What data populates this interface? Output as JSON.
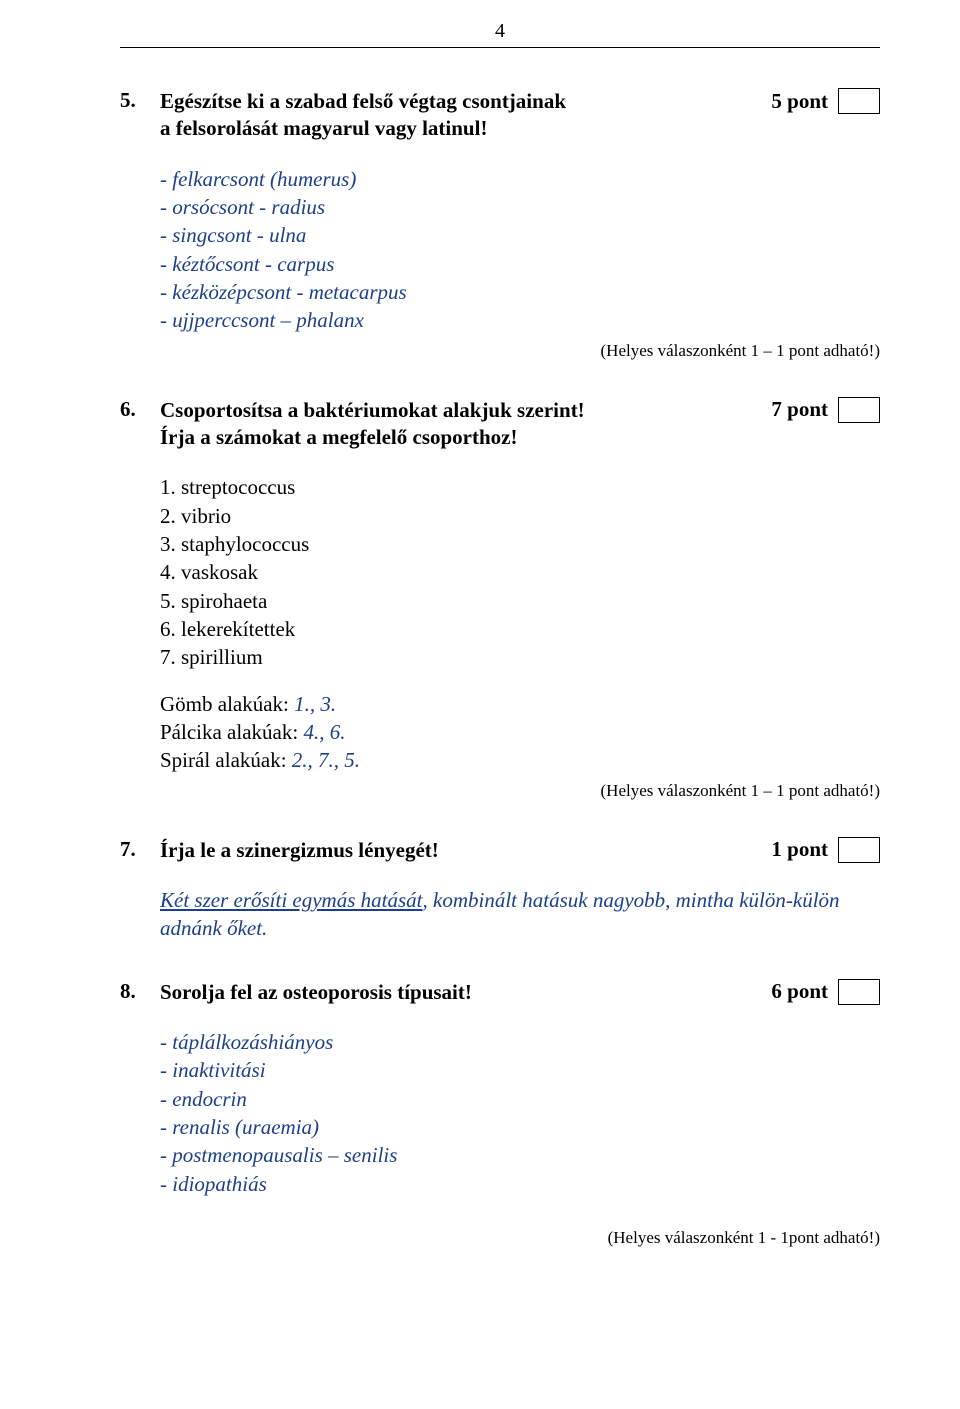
{
  "page_number": "4",
  "questions": {
    "q5": {
      "num": "5.",
      "line1": "Egészítse ki a szabad felső végtag csontjainak",
      "line2": "a felsorolását magyarul vagy latinul!",
      "points": "5 pont",
      "answers": [
        "-   felkarcsont (humerus)",
        "-   orsócsont - radius",
        "-   singcsont - ulna",
        "-   kéztőcsont - carpus",
        "-   kézközépcsont - metacarpus",
        "-   ujjperccsont – phalanx"
      ],
      "hint": "(Helyes válaszonként 1 – 1 pont adható!)"
    },
    "q6": {
      "num": "6.",
      "line1": "Csoportosítsa a baktériumokat alakjuk szerint!",
      "line2": "Írja a számokat a megfelelő csoporthoz!",
      "points": "7 pont",
      "items": [
        "1. streptococcus",
        "2. vibrio",
        "3. staphylococcus",
        "4. vaskosak",
        "5. spirohaeta",
        "6. lekerekítettek",
        "7. spirillium"
      ],
      "groups": [
        {
          "label": "Gömb alakúak:  ",
          "answer": "1., 3."
        },
        {
          "label": "Pálcika alakúak:  ",
          "answer": "4., 6."
        },
        {
          "label": "Spirál alakúak:   ",
          "answer": "2., 7., 5."
        }
      ],
      "hint": "(Helyes válaszonként 1 – 1 pont adható!)"
    },
    "q7": {
      "num": "7.",
      "line1": "Írja le a szinergizmus lényegét!",
      "points": "1 pont",
      "answer_underlined": "Két szer erősíti egymás hatását",
      "answer_rest": ", kombinált hatásuk nagyobb, mintha külön-külön adnánk őket."
    },
    "q8": {
      "num": "8.",
      "line1": "Sorolja fel az osteoporosis típusait!",
      "points": "6 pont",
      "answers": [
        "- táplálkozáshiányos",
        "- inaktivitási",
        "- endocrin",
        "- renalis (uraemia)",
        "- postmenopausalis – senilis",
        "- idiopathiás"
      ],
      "hint": "(Helyes válaszonként 1 - 1pont adható!)"
    }
  }
}
